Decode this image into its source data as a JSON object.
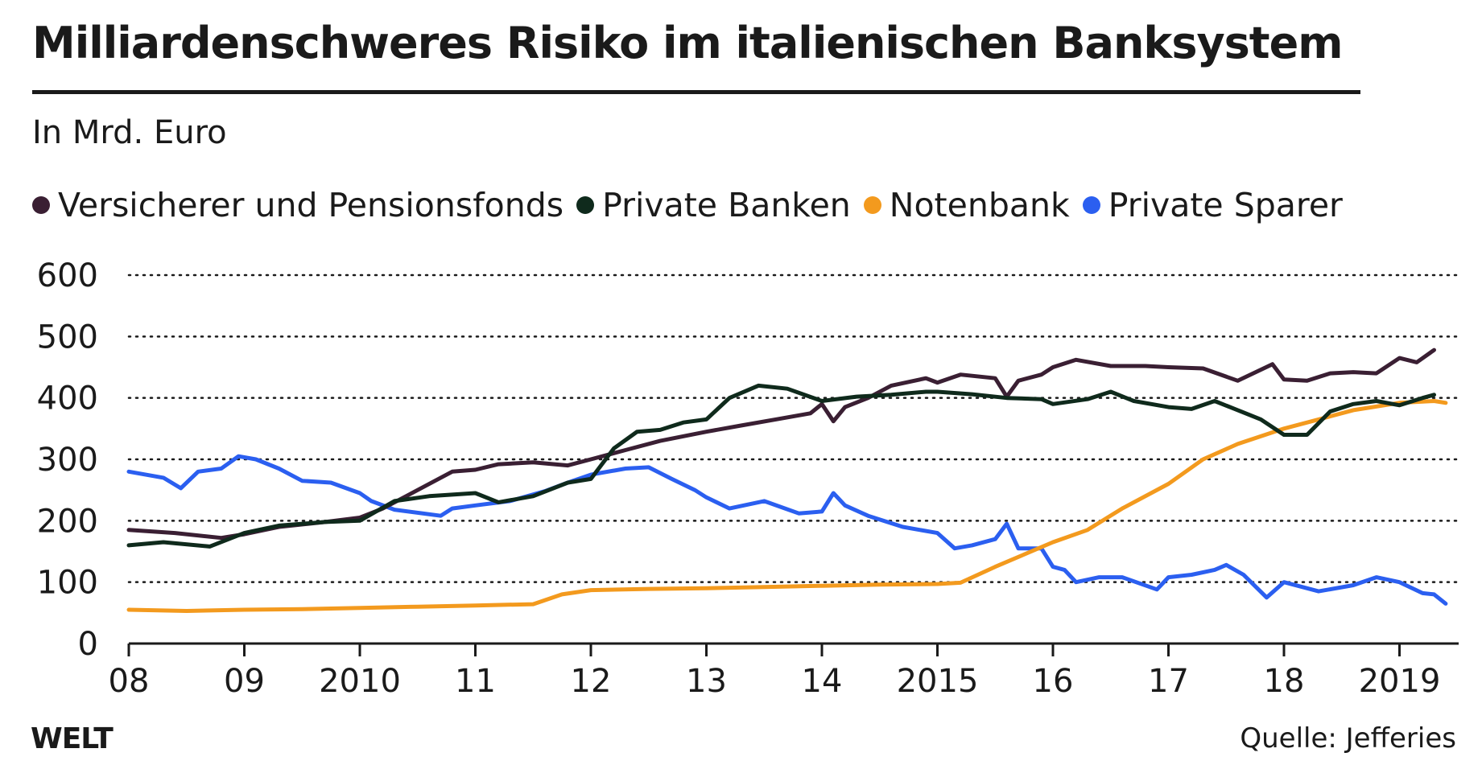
{
  "header": {
    "title": "Milliardenschweres Risiko im italienischen Banksystem",
    "subtitle": "In Mrd. Euro"
  },
  "footer": {
    "logo": "WELT",
    "source": "Quelle: Jefferies"
  },
  "chart_data": {
    "type": "line",
    "title": "Milliardenschweres Risiko im italienischen Banksystem",
    "subtitle": "In Mrd. Euro",
    "ylabel": "",
    "xlabel": "",
    "ylim": [
      0,
      600
    ],
    "xlim": [
      2008,
      2019.5
    ],
    "y_ticks": [
      0,
      100,
      200,
      300,
      400,
      500,
      600
    ],
    "x_ticks": [
      {
        "label": "08",
        "value": 2008
      },
      {
        "label": "09",
        "value": 2009
      },
      {
        "label": "2010",
        "value": 2010
      },
      {
        "label": "11",
        "value": 2011
      },
      {
        "label": "12",
        "value": 2012
      },
      {
        "label": "13",
        "value": 2013
      },
      {
        "label": "14",
        "value": 2014
      },
      {
        "label": "2015",
        "value": 2015
      },
      {
        "label": "16",
        "value": 2016
      },
      {
        "label": "17",
        "value": 2017
      },
      {
        "label": "18",
        "value": 2018
      },
      {
        "label": "2019",
        "value": 2019
      }
    ],
    "grid": "horizontal-dotted",
    "legend_position": "top-left",
    "series": [
      {
        "name": "Versicherer und Pensionsfonds",
        "color": "#3a1f33",
        "points": [
          [
            2008.0,
            185
          ],
          [
            2008.4,
            180
          ],
          [
            2008.8,
            172
          ],
          [
            2009.0,
            178
          ],
          [
            2009.3,
            190
          ],
          [
            2009.7,
            198
          ],
          [
            2010.0,
            205
          ],
          [
            2010.2,
            220
          ],
          [
            2010.5,
            250
          ],
          [
            2010.8,
            280
          ],
          [
            2011.0,
            283
          ],
          [
            2011.2,
            292
          ],
          [
            2011.5,
            295
          ],
          [
            2011.8,
            290
          ],
          [
            2012.0,
            300
          ],
          [
            2012.3,
            315
          ],
          [
            2012.6,
            330
          ],
          [
            2013.0,
            345
          ],
          [
            2013.3,
            355
          ],
          [
            2013.6,
            365
          ],
          [
            2013.9,
            375
          ],
          [
            2014.0,
            390
          ],
          [
            2014.1,
            362
          ],
          [
            2014.2,
            385
          ],
          [
            2014.4,
            400
          ],
          [
            2014.6,
            420
          ],
          [
            2014.9,
            432
          ],
          [
            2015.0,
            425
          ],
          [
            2015.2,
            438
          ],
          [
            2015.5,
            432
          ],
          [
            2015.6,
            402
          ],
          [
            2015.7,
            428
          ],
          [
            2015.9,
            438
          ],
          [
            2016.0,
            450
          ],
          [
            2016.2,
            462
          ],
          [
            2016.5,
            452
          ],
          [
            2016.8,
            452
          ],
          [
            2017.0,
            450
          ],
          [
            2017.3,
            448
          ],
          [
            2017.6,
            428
          ],
          [
            2017.9,
            455
          ],
          [
            2018.0,
            430
          ],
          [
            2018.2,
            428
          ],
          [
            2018.4,
            440
          ],
          [
            2018.6,
            442
          ],
          [
            2018.8,
            440
          ],
          [
            2019.0,
            465
          ],
          [
            2019.15,
            458
          ],
          [
            2019.3,
            478
          ]
        ]
      },
      {
        "name": "Private Banken",
        "color": "#0f2a1c",
        "points": [
          [
            2008.0,
            160
          ],
          [
            2008.3,
            165
          ],
          [
            2008.7,
            158
          ],
          [
            2009.0,
            180
          ],
          [
            2009.3,
            192
          ],
          [
            2009.7,
            198
          ],
          [
            2010.0,
            200
          ],
          [
            2010.3,
            232
          ],
          [
            2010.6,
            240
          ],
          [
            2011.0,
            245
          ],
          [
            2011.2,
            230
          ],
          [
            2011.5,
            240
          ],
          [
            2011.8,
            262
          ],
          [
            2012.0,
            268
          ],
          [
            2012.2,
            318
          ],
          [
            2012.4,
            345
          ],
          [
            2012.6,
            348
          ],
          [
            2012.8,
            360
          ],
          [
            2013.0,
            365
          ],
          [
            2013.2,
            400
          ],
          [
            2013.45,
            420
          ],
          [
            2013.7,
            415
          ],
          [
            2014.0,
            395
          ],
          [
            2014.3,
            402
          ],
          [
            2014.6,
            405
          ],
          [
            2014.9,
            410
          ],
          [
            2015.0,
            410
          ],
          [
            2015.3,
            406
          ],
          [
            2015.6,
            400
          ],
          [
            2015.9,
            398
          ],
          [
            2016.0,
            390
          ],
          [
            2016.3,
            398
          ],
          [
            2016.5,
            410
          ],
          [
            2016.7,
            395
          ],
          [
            2017.0,
            385
          ],
          [
            2017.2,
            382
          ],
          [
            2017.4,
            395
          ],
          [
            2017.6,
            380
          ],
          [
            2017.8,
            365
          ],
          [
            2018.0,
            340
          ],
          [
            2018.2,
            340
          ],
          [
            2018.4,
            378
          ],
          [
            2018.6,
            390
          ],
          [
            2018.8,
            395
          ],
          [
            2019.0,
            388
          ],
          [
            2019.2,
            400
          ],
          [
            2019.3,
            405
          ]
        ]
      },
      {
        "name": "Notenbank",
        "color": "#f39a1e",
        "points": [
          [
            2008.0,
            55
          ],
          [
            2008.5,
            53
          ],
          [
            2009.0,
            55
          ],
          [
            2009.5,
            56
          ],
          [
            2010.0,
            58
          ],
          [
            2010.5,
            60
          ],
          [
            2011.0,
            62
          ],
          [
            2011.5,
            64
          ],
          [
            2011.75,
            80
          ],
          [
            2012.0,
            87
          ],
          [
            2012.5,
            89
          ],
          [
            2013.0,
            90
          ],
          [
            2013.5,
            92
          ],
          [
            2014.0,
            94
          ],
          [
            2014.5,
            96
          ],
          [
            2015.0,
            97
          ],
          [
            2015.2,
            99
          ],
          [
            2015.5,
            125
          ],
          [
            2016.0,
            165
          ],
          [
            2016.3,
            185
          ],
          [
            2016.6,
            220
          ],
          [
            2017.0,
            260
          ],
          [
            2017.3,
            300
          ],
          [
            2017.6,
            325
          ],
          [
            2018.0,
            350
          ],
          [
            2018.3,
            365
          ],
          [
            2018.6,
            380
          ],
          [
            2019.0,
            392
          ],
          [
            2019.3,
            395
          ],
          [
            2019.4,
            392
          ]
        ]
      },
      {
        "name": "Private Sparer",
        "color": "#2b5ff0",
        "points": [
          [
            2008.0,
            280
          ],
          [
            2008.3,
            270
          ],
          [
            2008.45,
            253
          ],
          [
            2008.6,
            280
          ],
          [
            2008.8,
            285
          ],
          [
            2008.95,
            305
          ],
          [
            2009.1,
            300
          ],
          [
            2009.3,
            285
          ],
          [
            2009.5,
            265
          ],
          [
            2009.75,
            262
          ],
          [
            2010.0,
            245
          ],
          [
            2010.1,
            232
          ],
          [
            2010.3,
            218
          ],
          [
            2010.7,
            208
          ],
          [
            2010.8,
            220
          ],
          [
            2011.0,
            225
          ],
          [
            2011.3,
            232
          ],
          [
            2011.6,
            248
          ],
          [
            2011.8,
            262
          ],
          [
            2012.0,
            275
          ],
          [
            2012.3,
            285
          ],
          [
            2012.5,
            287
          ],
          [
            2012.7,
            268
          ],
          [
            2012.9,
            250
          ],
          [
            2013.0,
            238
          ],
          [
            2013.2,
            220
          ],
          [
            2013.5,
            232
          ],
          [
            2013.8,
            212
          ],
          [
            2014.0,
            215
          ],
          [
            2014.1,
            245
          ],
          [
            2014.2,
            225
          ],
          [
            2014.4,
            208
          ],
          [
            2014.7,
            190
          ],
          [
            2015.0,
            180
          ],
          [
            2015.15,
            155
          ],
          [
            2015.3,
            160
          ],
          [
            2015.5,
            170
          ],
          [
            2015.6,
            195
          ],
          [
            2015.7,
            155
          ],
          [
            2015.9,
            155
          ],
          [
            2016.0,
            125
          ],
          [
            2016.1,
            120
          ],
          [
            2016.2,
            100
          ],
          [
            2016.4,
            108
          ],
          [
            2016.6,
            108
          ],
          [
            2016.9,
            88
          ],
          [
            2017.0,
            108
          ],
          [
            2017.2,
            112
          ],
          [
            2017.4,
            120
          ],
          [
            2017.5,
            128
          ],
          [
            2017.65,
            112
          ],
          [
            2017.85,
            75
          ],
          [
            2018.0,
            100
          ],
          [
            2018.3,
            85
          ],
          [
            2018.6,
            95
          ],
          [
            2018.8,
            108
          ],
          [
            2019.0,
            100
          ],
          [
            2019.2,
            82
          ],
          [
            2019.3,
            80
          ],
          [
            2019.4,
            65
          ]
        ]
      }
    ]
  }
}
